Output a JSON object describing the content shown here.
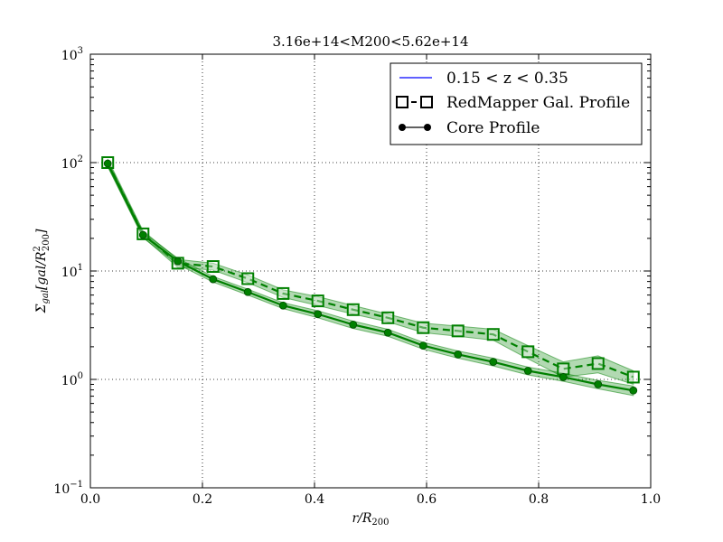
{
  "chart_data": {
    "type": "line",
    "title": "3.16e+14<M200<5.62e+14",
    "xlabel": "r/R200",
    "ylabel": "Σgal[gal/R²200]",
    "xlim": [
      0.0,
      1.0
    ],
    "ylim": [
      0.1,
      1000
    ],
    "yscale": "log",
    "grid": true,
    "legend_position": "top-right",
    "x_ticks": [
      "0.0",
      "0.2",
      "0.4",
      "0.6",
      "0.8",
      "1.0"
    ],
    "y_ticks": [
      {
        "base": "10",
        "exp": "−1",
        "value": 0.1
      },
      {
        "base": "10",
        "exp": "0",
        "value": 1
      },
      {
        "base": "10",
        "exp": "1",
        "value": 10
      },
      {
        "base": "10",
        "exp": "2",
        "value": 100
      },
      {
        "base": "10",
        "exp": "3",
        "value": 1000
      }
    ],
    "legend": [
      {
        "label": "0.15 < z < 0.35",
        "style": "line",
        "color": "#0000ff"
      },
      {
        "label": "RedMapper Gal.  Profile",
        "style": "dashed-square",
        "color": "#000000"
      },
      {
        "label": "Core Profile",
        "style": "solid-circle",
        "color": "#000000"
      }
    ],
    "series": [
      {
        "name": "RedMapper Gal.  Profile",
        "color": "#008000",
        "marker": "square",
        "linestyle": "dashed",
        "x": [
          0.031,
          0.094,
          0.156,
          0.219,
          0.281,
          0.344,
          0.406,
          0.469,
          0.531,
          0.594,
          0.656,
          0.719,
          0.781,
          0.844,
          0.906,
          0.969
        ],
        "y": [
          100,
          22,
          11.8,
          11.0,
          8.5,
          6.2,
          5.3,
          4.4,
          3.7,
          3.0,
          2.8,
          2.6,
          1.8,
          1.25,
          1.4,
          1.05
        ],
        "band_low": [
          92,
          20.5,
          10.8,
          10.2,
          7.8,
          5.7,
          4.8,
          4.0,
          3.4,
          2.7,
          2.5,
          2.3,
          1.55,
          1.05,
          1.15,
          0.9
        ],
        "band_high": [
          108,
          23.5,
          12.8,
          11.8,
          9.2,
          6.7,
          5.8,
          4.8,
          4.0,
          3.3,
          3.1,
          2.9,
          2.05,
          1.45,
          1.65,
          1.2
        ]
      },
      {
        "name": "Core Profile",
        "color": "#008000",
        "marker": "circle",
        "linestyle": "solid",
        "x": [
          0.031,
          0.094,
          0.156,
          0.219,
          0.281,
          0.344,
          0.406,
          0.469,
          0.531,
          0.594,
          0.656,
          0.719,
          0.781,
          0.844,
          0.906,
          0.969
        ],
        "y": [
          98,
          21.5,
          12.3,
          8.4,
          6.4,
          4.8,
          4.0,
          3.2,
          2.7,
          2.05,
          1.7,
          1.45,
          1.2,
          1.05,
          0.9,
          0.79
        ],
        "band_low": [
          92,
          20.2,
          11.5,
          7.9,
          6.0,
          4.5,
          3.7,
          2.95,
          2.5,
          1.9,
          1.57,
          1.33,
          1.1,
          0.96,
          0.82,
          0.71
        ],
        "band_high": [
          104,
          22.8,
          13.1,
          8.9,
          6.8,
          5.1,
          4.3,
          3.45,
          2.9,
          2.2,
          1.83,
          1.57,
          1.3,
          1.14,
          0.98,
          0.87
        ]
      }
    ]
  }
}
